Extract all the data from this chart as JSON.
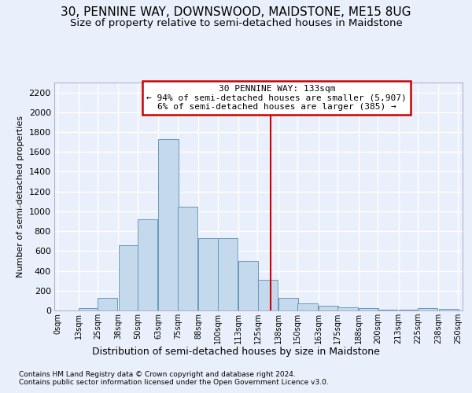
{
  "title": "30, PENNINE WAY, DOWNSWOOD, MAIDSTONE, ME15 8UG",
  "subtitle": "Size of property relative to semi-detached houses in Maidstone",
  "xlabel": "Distribution of semi-detached houses by size in Maidstone",
  "ylabel": "Number of semi-detached properties",
  "footer_line1": "Contains HM Land Registry data © Crown copyright and database right 2024.",
  "footer_line2": "Contains public sector information licensed under the Open Government Licence v3.0.",
  "annotation_line1": "30 PENNINE WAY: 133sqm",
  "annotation_line2": "← 94% of semi-detached houses are smaller (5,907)",
  "annotation_line3": "6% of semi-detached houses are larger (385) →",
  "vline_x": 133,
  "bar_left_edges": [
    0,
    13,
    25,
    38,
    50,
    63,
    75,
    88,
    100,
    113,
    125,
    138,
    150,
    163,
    175,
    188,
    200,
    213,
    225,
    238
  ],
  "bar_heights": [
    0,
    25,
    130,
    660,
    920,
    1730,
    1050,
    730,
    730,
    500,
    310,
    130,
    70,
    50,
    35,
    20,
    10,
    5,
    20,
    15
  ],
  "bin_size": 12.5,
  "bar_color": "#c5d9ed",
  "bar_edge_color": "#6699bb",
  "vline_color": "#cc0000",
  "box_edge_color": "#cc0000",
  "tick_labels": [
    "0sqm",
    "13sqm",
    "25sqm",
    "38sqm",
    "50sqm",
    "63sqm",
    "75sqm",
    "88sqm",
    "100sqm",
    "113sqm",
    "125sqm",
    "138sqm",
    "150sqm",
    "163sqm",
    "175sqm",
    "188sqm",
    "200sqm",
    "213sqm",
    "225sqm",
    "238sqm",
    "250sqm"
  ],
  "yticks": [
    0,
    200,
    400,
    600,
    800,
    1000,
    1200,
    1400,
    1600,
    1800,
    2000,
    2200
  ],
  "ylim": [
    0,
    2300
  ],
  "xlim": [
    -2,
    253
  ],
  "background_color": "#eaf0fb",
  "grid_color": "#ffffff",
  "title_fontsize": 11,
  "subtitle_fontsize": 9.5,
  "footer_fontsize": 6.5,
  "annotation_fontsize": 8,
  "ylabel_fontsize": 8,
  "xlabel_fontsize": 9
}
